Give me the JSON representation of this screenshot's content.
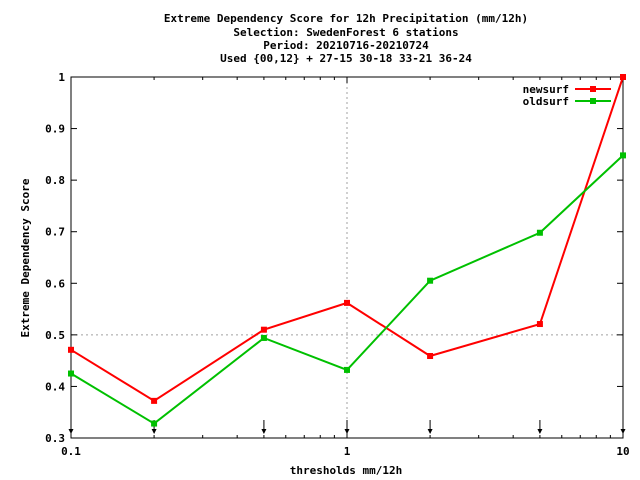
{
  "chart_data": {
    "type": "line",
    "title_lines": [
      "Extreme Dependency Score  for 12h Precipitation (mm/12h)",
      "Selection: SwedenForest      6 stations",
      "Period: 20210716-20210724",
      "Used {00,12} + 27-15 30-18 33-21 36-24"
    ],
    "xlabel": "thresholds mm/12h",
    "ylabel": "Extreme Dependency Score",
    "x_scale": "log",
    "xlim": [
      0.1,
      10
    ],
    "ylim": [
      0.3,
      1.0
    ],
    "x_ticks": [
      {
        "value": 0.1,
        "label": "0.1"
      },
      {
        "value": 1,
        "label": "1"
      },
      {
        "value": 10,
        "label": "10"
      }
    ],
    "y_ticks": [
      {
        "value": 0.3,
        "label": "0.3"
      },
      {
        "value": 0.4,
        "label": "0.4"
      },
      {
        "value": 0.5,
        "label": "0.5"
      },
      {
        "value": 0.6,
        "label": "0.6"
      },
      {
        "value": 0.7,
        "label": "0.7"
      },
      {
        "value": 0.8,
        "label": "0.8"
      },
      {
        "value": 0.9,
        "label": "0.9"
      },
      {
        "value": 1.0,
        "label": "1"
      }
    ],
    "grid": "dotted at x=1 and y=0.5",
    "legend_position": "top-right",
    "threshold_markers": [
      0.1,
      0.2,
      0.5,
      1,
      2,
      5,
      10
    ],
    "x": [
      0.1,
      0.2,
      0.5,
      1,
      2,
      5,
      10
    ],
    "series": [
      {
        "name": "newsurf",
        "color": "#ff0000",
        "values": [
          0.471,
          0.372,
          0.51,
          0.562,
          0.459,
          0.521,
          1.0
        ]
      },
      {
        "name": "oldsurf",
        "color": "#00c000",
        "values": [
          0.425,
          0.328,
          0.494,
          0.432,
          0.605,
          0.698,
          0.848
        ]
      }
    ]
  }
}
